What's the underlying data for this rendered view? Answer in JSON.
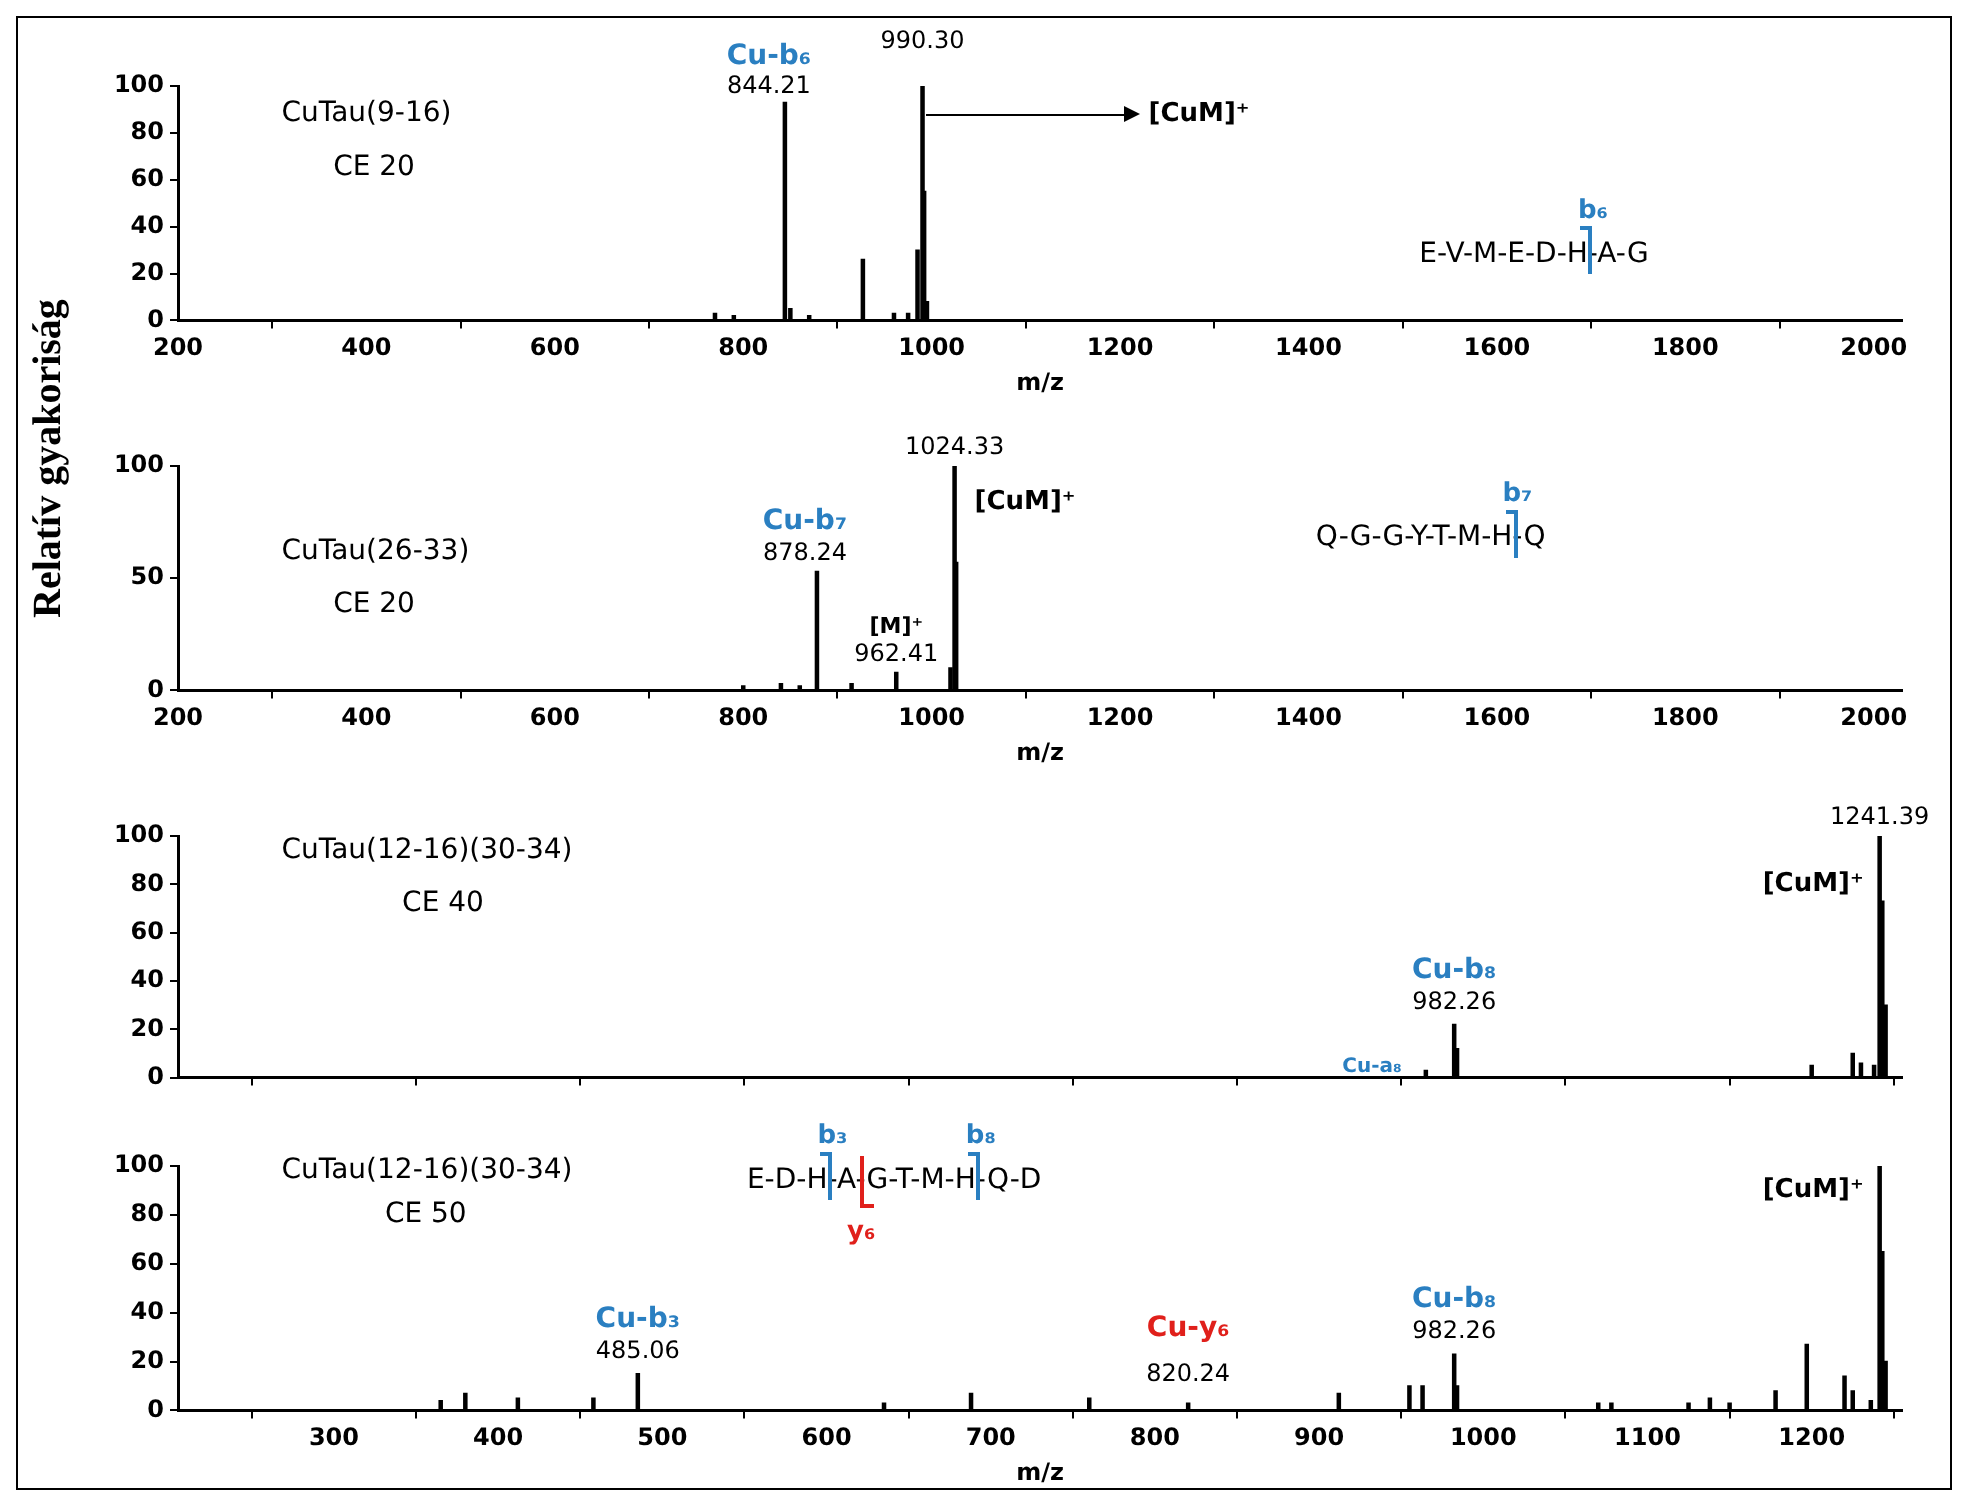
{
  "chart_data": [
    {
      "type": "bar",
      "x": [
        770,
        790,
        844.21,
        850,
        870,
        927,
        960,
        975,
        985,
        990.3,
        992,
        995
      ],
      "series": [
        {
          "color": "#000000",
          "values": [
            3,
            2,
            93,
            5,
            2,
            26,
            3,
            3,
            30,
            100,
            55,
            8
          ]
        }
      ],
      "xlabel": "m/z",
      "xlim": [
        200,
        2030
      ],
      "xticks": [
        200,
        400,
        600,
        800,
        1000,
        1200,
        1400,
        1600,
        1800,
        2000
      ],
      "ylim": [
        0,
        100
      ],
      "yticks": [
        0,
        20,
        40,
        60,
        80,
        100
      ],
      "annotations": [
        "CuTau(9-16)",
        "CE 20",
        {
          "text": "Cu-b₆",
          "x": 844.21,
          "y": 93
        },
        {
          "text": "844.21",
          "x": 844.21,
          "y": 93
        },
        {
          "text": "990.30",
          "x": 990.3,
          "y": 100
        },
        "[CuM]⁺",
        "E-V-M-E-D-H-A-G",
        "b₆"
      ]
    },
    {
      "type": "bar",
      "x": [
        800,
        840,
        860,
        878.24,
        915,
        962.41,
        1020,
        1024.33,
        1026
      ],
      "series": [
        {
          "color": "#000000",
          "values": [
            2,
            3,
            2,
            53,
            3,
            8,
            10,
            100,
            57
          ]
        }
      ],
      "xlabel": "m/z",
      "ylabel": "Relatív gyakoriság",
      "xlim": [
        200,
        2030
      ],
      "xticks": [
        200,
        400,
        600,
        800,
        1000,
        1200,
        1400,
        1600,
        1800,
        2000
      ],
      "ylim": [
        0,
        100
      ],
      "yticks": [
        0,
        50,
        100
      ],
      "annotations": [
        "CuTau(26-33)",
        "CE 20",
        {
          "text": "Cu-b₇",
          "x": 878.24,
          "y": 53
        },
        {
          "text": "878.24",
          "x": 878.24,
          "y": 53
        },
        {
          "text": "[M]⁺",
          "x": 962.41,
          "y": 8
        },
        {
          "text": "962.41",
          "x": 962.41,
          "y": 8
        },
        {
          "text": "1024.33",
          "x": 1024.33,
          "y": 100
        },
        {
          "text": "[CuM]⁺",
          "x": 1024.33,
          "y": 100
        },
        "Q-G-G-Y-T-M-H-Q",
        "b₇"
      ]
    },
    {
      "type": "bar",
      "x": [
        965,
        982.26,
        984,
        1200,
        1225,
        1230,
        1238,
        1241.39,
        1243,
        1245
      ],
      "series": [
        {
          "color": "#000000",
          "values": [
            3,
            22,
            12,
            5,
            10,
            6,
            5,
            100,
            73,
            30
          ]
        }
      ],
      "xlim": [
        205,
        1255
      ],
      "xticks": [
        300,
        400,
        500,
        600,
        700,
        800,
        900,
        1000,
        1100,
        1200
      ],
      "ylim": [
        0,
        100
      ],
      "yticks": [
        0,
        20,
        40,
        60,
        80,
        100
      ],
      "tick_labels": "y",
      "annotations": [
        "CuTau(12-16)(30-34)",
        "CE 40",
        {
          "text": "1241.39",
          "x": 1241.39,
          "y": 100
        },
        {
          "text": "[CuM]⁺",
          "x": 1241.39,
          "y": 80
        },
        {
          "text": "Cu-b₈",
          "x": 982.26,
          "y": 22
        },
        {
          "text": "982.26",
          "x": 982.26,
          "y": 22
        },
        {
          "text": "Cu-a₈",
          "x": 965,
          "y": 3
        }
      ]
    },
    {
      "type": "bar",
      "x": [
        365,
        380,
        412,
        458,
        485.06,
        635,
        688,
        760,
        820.24,
        912,
        955,
        963,
        982.26,
        984,
        1070,
        1078,
        1125,
        1138,
        1150,
        1178,
        1197,
        1220,
        1225,
        1236,
        1241.39,
        1243,
        1245
      ],
      "series": [
        {
          "color": "#000000",
          "values": [
            4,
            7,
            5,
            5,
            15,
            3,
            7,
            5,
            3,
            7,
            10,
            10,
            23,
            10,
            3,
            3,
            3,
            5,
            3,
            8,
            27,
            14,
            8,
            4,
            100,
            65,
            20
          ]
        }
      ],
      "xlabel": "m/z",
      "xlim": [
        205,
        1255
      ],
      "xticks": [
        300,
        400,
        500,
        600,
        700,
        800,
        900,
        1000,
        1100,
        1200
      ],
      "ylim": [
        0,
        100
      ],
      "yticks": [
        0,
        20,
        40,
        60,
        80,
        100
      ],
      "annotations": [
        "CuTau(12-16)(30-34)",
        "CE 50",
        "E-D-H-A-G-T-M-H-Q-D",
        "b₃",
        "b₈",
        "y₆",
        {
          "text": "Cu-b₃",
          "x": 485.06,
          "y": 15
        },
        {
          "text": "485.06",
          "x": 485.06,
          "y": 15
        },
        {
          "text": "Cu-y₆",
          "x": 820.24,
          "y": 3
        },
        {
          "text": "820.24",
          "x": 820.24,
          "y": 3
        },
        {
          "text": "Cu-b₈",
          "x": 982.26,
          "y": 23
        },
        {
          "text": "982.26",
          "x": 982.26,
          "y": 23
        },
        {
          "text": "[CuM]⁺",
          "x": 1241.39,
          "y": 100
        }
      ]
    }
  ]
}
